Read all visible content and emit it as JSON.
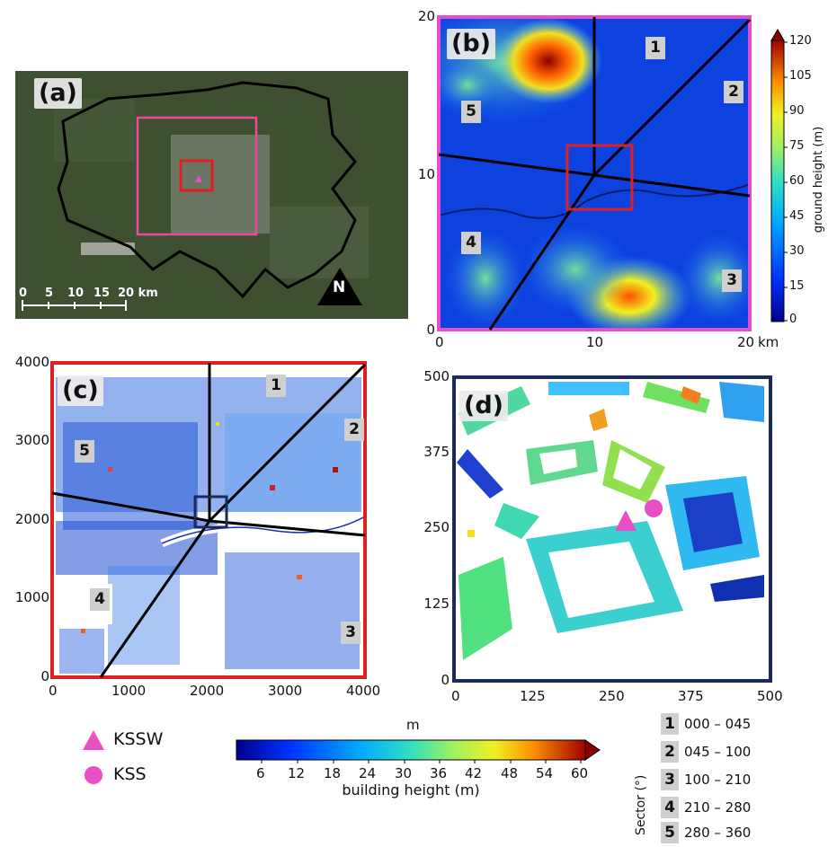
{
  "panels": {
    "a": {
      "tag": "(a)",
      "north": "N",
      "scale_ticks": [
        "0",
        "5",
        "10",
        "15",
        "20 km"
      ]
    },
    "b": {
      "tag": "(b)",
      "x_ticks": [
        "0",
        "10",
        "20"
      ],
      "y_ticks": [
        "20",
        "10",
        "0"
      ],
      "x_unit": "km",
      "sectors": [
        "1",
        "2",
        "3",
        "4",
        "5"
      ],
      "colorbar": {
        "label": "ground height (m)",
        "ticks": [
          "120",
          "105",
          "90",
          "75",
          "60",
          "45",
          "30",
          "15",
          "0"
        ]
      }
    },
    "c": {
      "tag": "(c)",
      "x_ticks": [
        "0",
        "1000",
        "2000",
        "3000",
        "4000"
      ],
      "y_ticks": [
        "4000",
        "3000",
        "2000",
        "1000",
        "0"
      ],
      "sectors": [
        "1",
        "2",
        "3",
        "4",
        "5"
      ]
    },
    "d": {
      "tag": "(d)",
      "x_ticks": [
        "0",
        "125",
        "250",
        "375",
        "500"
      ],
      "y_ticks": [
        "500",
        "375",
        "250",
        "125",
        "0"
      ]
    }
  },
  "markers": {
    "kssw": "KSSW",
    "kss": "KSS",
    "colors": {
      "marker": "#e94fc4",
      "frame_pink": "#e84c9a",
      "frame_red": "#e02020",
      "frame_navy": "#1a2a5a"
    }
  },
  "building_colorbar": {
    "unit": "m",
    "label": "building height (m)",
    "ticks": [
      "6",
      "12",
      "18",
      "24",
      "30",
      "36",
      "42",
      "48",
      "54",
      "60"
    ]
  },
  "sector_legend": {
    "title": "Sector (°)",
    "rows": [
      {
        "num": "1",
        "range": "000 – 045"
      },
      {
        "num": "2",
        "range": "045 – 100"
      },
      {
        "num": "3",
        "range": "100 – 210"
      },
      {
        "num": "4",
        "range": "210 – 280"
      },
      {
        "num": "5",
        "range": "280 – 360"
      }
    ]
  }
}
